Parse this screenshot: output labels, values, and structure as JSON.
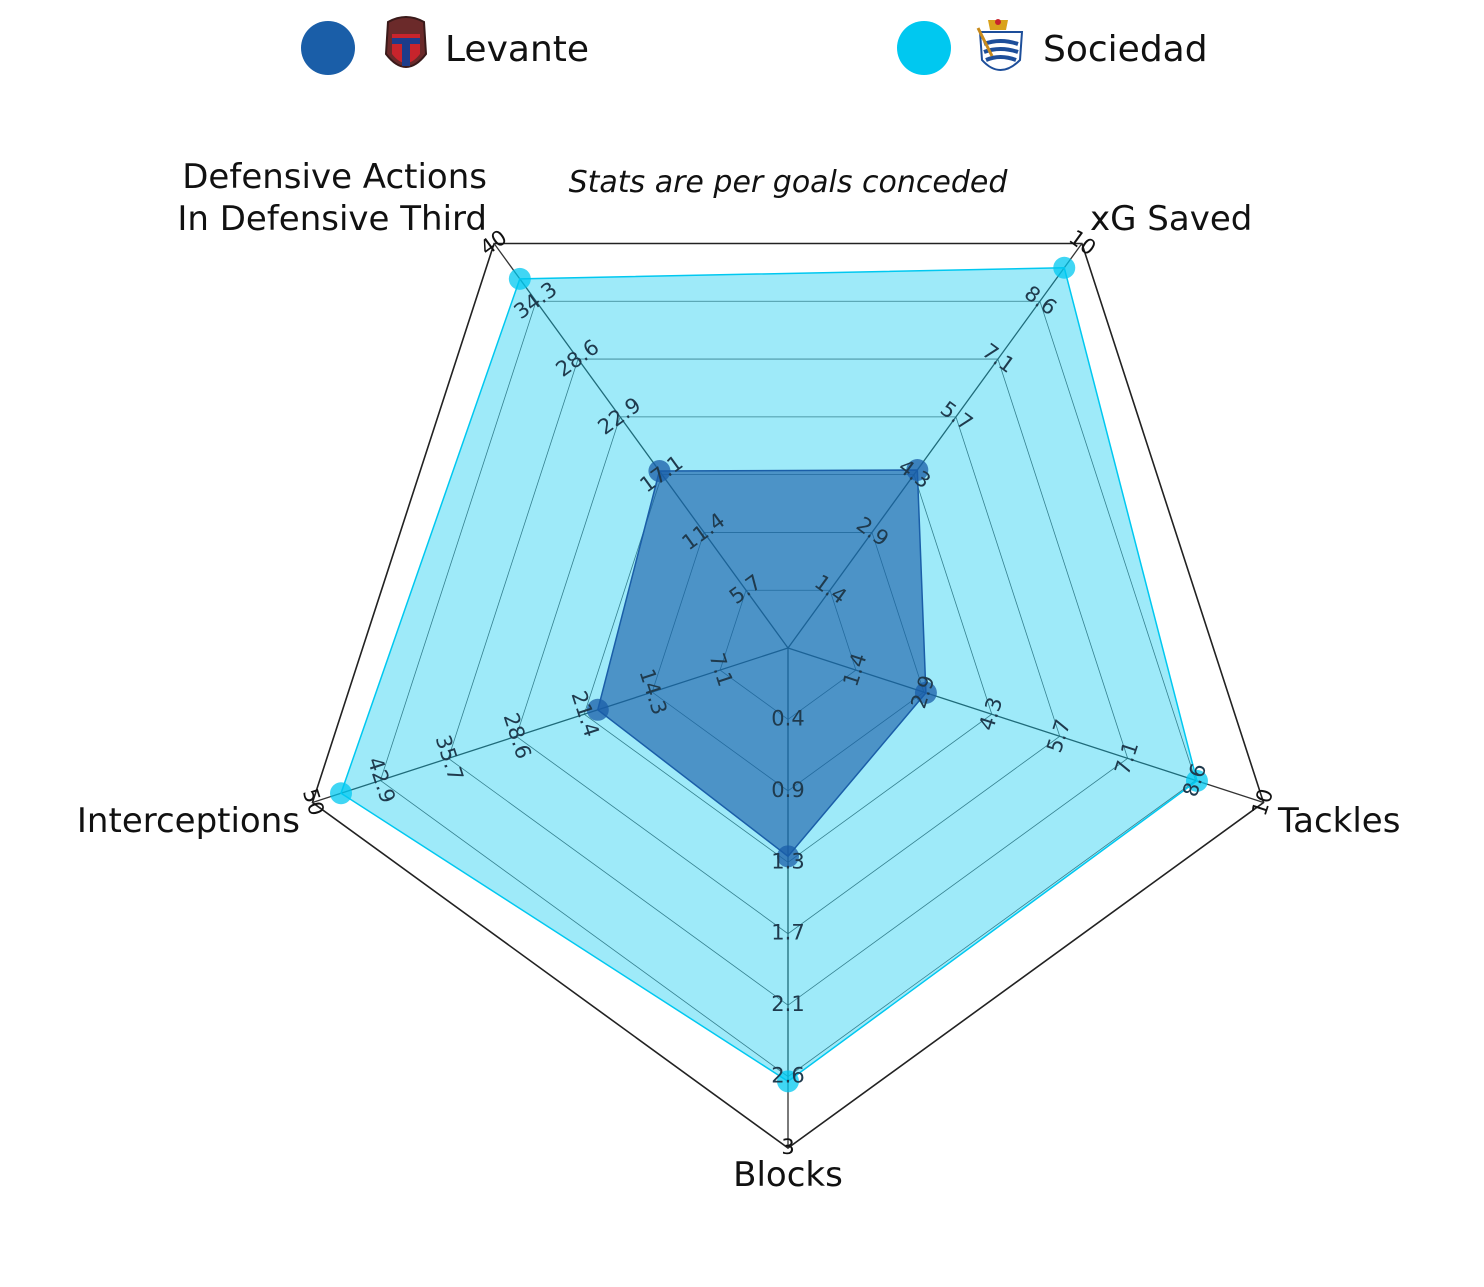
{
  "chart_data": {
    "type": "radar",
    "subtitle": "Stats are per goals conceded",
    "axes": [
      {
        "name": "xG Saved",
        "lines": [
          "xG Saved"
        ],
        "range": [
          0,
          10
        ],
        "ticks": [
          "1.4",
          "2.9",
          "4.3",
          "5.7",
          "7.1",
          "8.6",
          "10"
        ]
      },
      {
        "name": "Tackles",
        "lines": [
          "Tackles"
        ],
        "range": [
          0,
          10
        ],
        "ticks": [
          "1.4",
          "2.9",
          "4.3",
          "5.7",
          "7.1",
          "8.6",
          "10"
        ]
      },
      {
        "name": "Blocks",
        "lines": [
          "Blocks"
        ],
        "range": [
          0,
          3
        ],
        "ticks": [
          "0.4",
          "0.9",
          "1.3",
          "1.7",
          "2.1",
          "2.6",
          "3"
        ]
      },
      {
        "name": "Interceptions",
        "lines": [
          "Interceptions"
        ],
        "range": [
          0,
          50
        ],
        "ticks": [
          "7.1",
          "14.3",
          "21.4",
          "28.6",
          "35.7",
          "42.9",
          "50"
        ]
      },
      {
        "name": "Defensive Actions In Defensive Third",
        "lines": [
          "Defensive Actions",
          "In Defensive Third"
        ],
        "range": [
          0,
          40
        ],
        "ticks": [
          "5.7",
          "11.4",
          "17.1",
          "22.9",
          "28.6",
          "34.3",
          "40"
        ]
      }
    ],
    "series": [
      {
        "name": "Levante",
        "color": "#1a5ea8",
        "values": [
          4.4,
          2.9,
          1.25,
          20,
          17.5
        ]
      },
      {
        "name": "Sociedad",
        "color": "#00c8f0",
        "values": [
          9.4,
          8.6,
          2.6,
          47,
          36.5
        ]
      }
    ],
    "grid": true,
    "legend": "top"
  }
}
